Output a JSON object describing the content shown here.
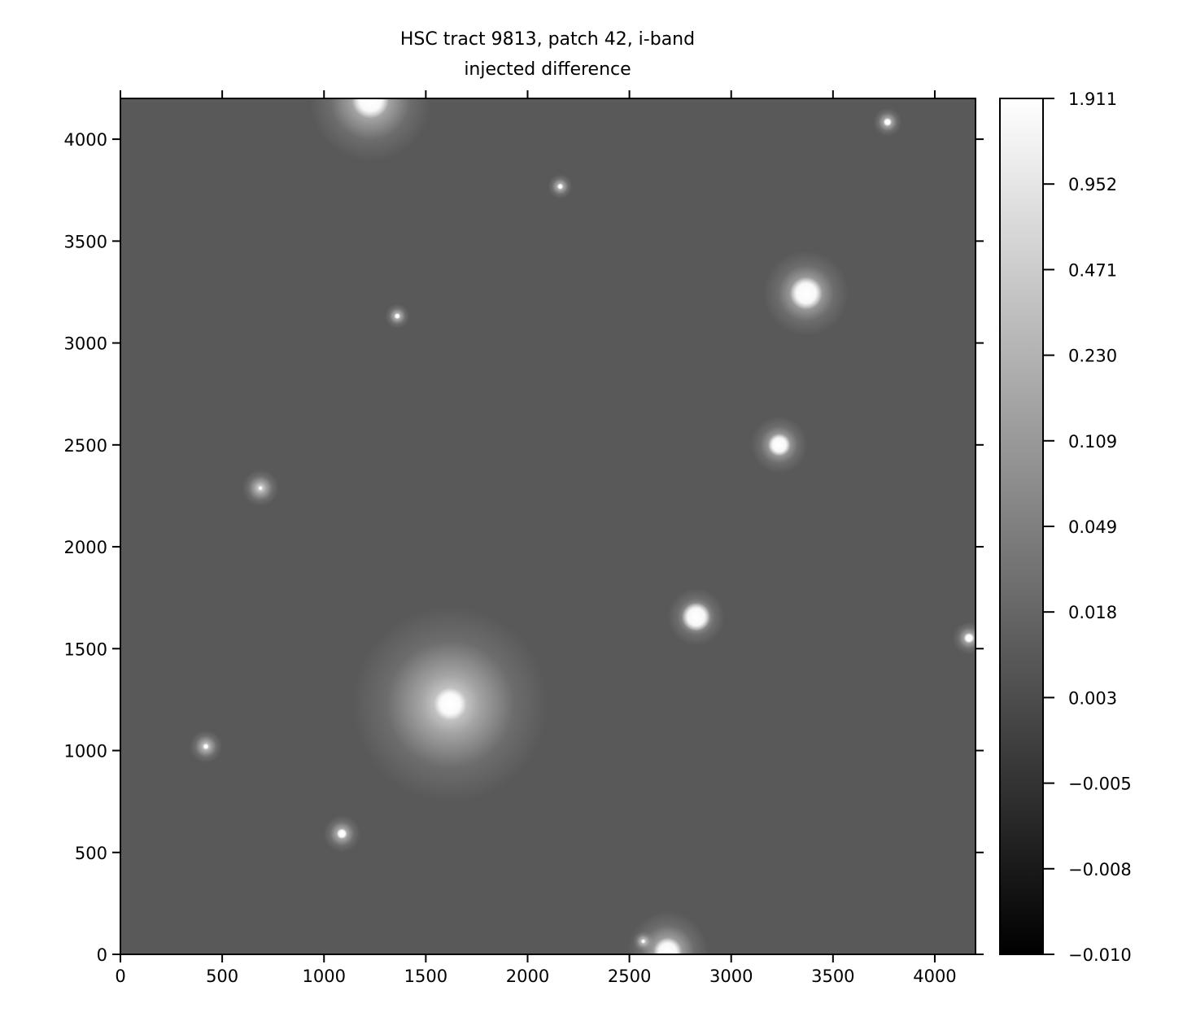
{
  "chart_data": {
    "type": "heatmap",
    "title": "HSC tract 9813, patch 42, i-band",
    "subtitle": "injected difference",
    "xlabel": "",
    "ylabel": "",
    "xlim": [
      0,
      4200
    ],
    "ylim": [
      0,
      4200
    ],
    "xticks": [
      "0",
      "500",
      "1000",
      "1500",
      "2000",
      "2500",
      "3000",
      "3500",
      "4000"
    ],
    "yticks": [
      "0",
      "500",
      "1000",
      "1500",
      "2000",
      "2500",
      "3000",
      "3500",
      "4000"
    ],
    "colormap": "gray",
    "background_color": "#595959",
    "colorbar": {
      "ticks": [
        "−0.010",
        "−0.008",
        "−0.005",
        "0.003",
        "0.018",
        "0.049",
        "0.109",
        "0.230",
        "0.471",
        "0.952",
        "1.911"
      ],
      "min": -0.01,
      "max": 1.911
    },
    "sources": [
      {
        "x": 1228,
        "y": 4192,
        "halo": 300,
        "core": 90
      },
      {
        "x": 3768,
        "y": 4084,
        "halo": 70,
        "core": 20
      },
      {
        "x": 2160,
        "y": 3768,
        "halo": 60,
        "core": 14
      },
      {
        "x": 3368,
        "y": 3244,
        "halo": 210,
        "core": 80
      },
      {
        "x": 1360,
        "y": 3132,
        "halo": 60,
        "core": 14
      },
      {
        "x": 3236,
        "y": 2500,
        "halo": 140,
        "core": 55
      },
      {
        "x": 688,
        "y": 2288,
        "halo": 90,
        "core": 10
      },
      {
        "x": 2828,
        "y": 1656,
        "halo": 140,
        "core": 70
      },
      {
        "x": 4168,
        "y": 1552,
        "halo": 80,
        "core": 25
      },
      {
        "x": 1620,
        "y": 1228,
        "halo": 480,
        "core": 80
      },
      {
        "x": 420,
        "y": 1020,
        "halo": 80,
        "core": 14
      },
      {
        "x": 1088,
        "y": 592,
        "halo": 90,
        "core": 25
      },
      {
        "x": 2568,
        "y": 64,
        "halo": 50,
        "core": 10
      },
      {
        "x": 2688,
        "y": 12,
        "halo": 200,
        "core": 70
      }
    ]
  }
}
